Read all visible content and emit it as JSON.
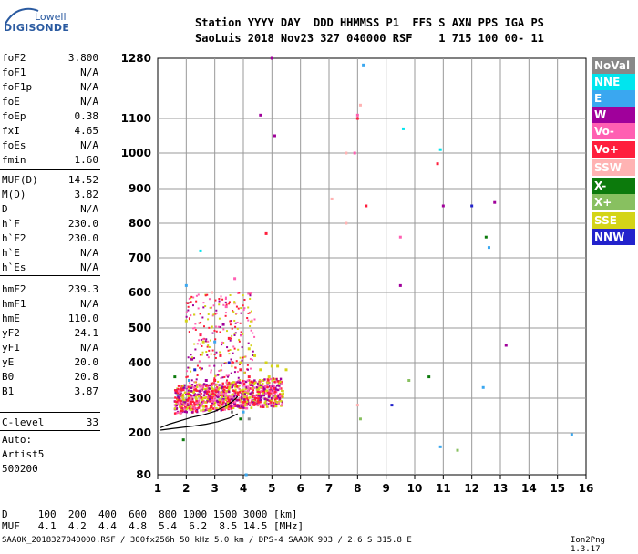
{
  "logo": {
    "line1": "Lowell",
    "line2": "DIGISONDE"
  },
  "header": {
    "line1": "Station YYYY DAY  DDD HHMMSS P1  FFS S AXN PPS IGA PS",
    "line2": "SaoLuis 2018 Nov23 327 040000 RSF    1 715 100 00- 11"
  },
  "params": [
    {
      "k": "foF2",
      "v": "3.800"
    },
    {
      "k": "foF1",
      "v": "N/A"
    },
    {
      "k": "foF1p",
      "v": "N/A"
    },
    {
      "k": "foE",
      "v": "N/A"
    },
    {
      "k": "foEp",
      "v": "0.38"
    },
    {
      "k": "fxI",
      "v": "4.65"
    },
    {
      "k": "foEs",
      "v": "N/A"
    },
    {
      "k": "fmin",
      "v": "1.60"
    },
    {
      "k": "MUF(D)",
      "v": "14.52"
    },
    {
      "k": "M(D)",
      "v": "3.82"
    },
    {
      "k": "D",
      "v": "N/A"
    },
    {
      "k": "h`F",
      "v": "230.0"
    },
    {
      "k": "h`F2",
      "v": "230.0"
    },
    {
      "k": "h`E",
      "v": "N/A"
    },
    {
      "k": "h`Es",
      "v": "N/A"
    },
    {
      "k": "hmF2",
      "v": "239.3"
    },
    {
      "k": "hmF1",
      "v": "N/A"
    },
    {
      "k": "hmE",
      "v": "110.0"
    },
    {
      "k": "yF2",
      "v": "24.1"
    },
    {
      "k": "yF1",
      "v": "N/A"
    },
    {
      "k": "yE",
      "v": "20.0"
    },
    {
      "k": "B0",
      "v": "20.8"
    },
    {
      "k": "B1",
      "v": "3.87"
    },
    {
      "k": "C-level",
      "v": "33"
    }
  ],
  "auto": {
    "l1": "Auto:",
    "l2": "Artist5",
    "l3": "500200"
  },
  "legend": [
    {
      "label": "NoVal",
      "bg": "#888888",
      "fg": "#ffffff"
    },
    {
      "label": "NNE",
      "bg": "#00e5ee",
      "fg": "#ffffff"
    },
    {
      "label": "E",
      "bg": "#3aa7f0",
      "fg": "#ffffff"
    },
    {
      "label": "W",
      "bg": "#a0009b",
      "fg": "#ffffff"
    },
    {
      "label": "Vo-",
      "bg": "#ff5fb2",
      "fg": "#ffffff"
    },
    {
      "label": "Vo+",
      "bg": "#ff1e3c",
      "fg": "#ffffff"
    },
    {
      "label": "SSW",
      "bg": "#ffb3b3",
      "fg": "#ffffff"
    },
    {
      "label": "X-",
      "bg": "#0c7a0c",
      "fg": "#ffffff"
    },
    {
      "label": "X+",
      "bg": "#88c060",
      "fg": "#ffffff"
    },
    {
      "label": "SSE",
      "bg": "#d4d418",
      "fg": "#ffffff"
    },
    {
      "label": "NNW",
      "bg": "#2222cc",
      "fg": "#ffffff"
    }
  ],
  "footer": {
    "d_line": "D     100  200  400  600  800 1000 1500 3000 [km]",
    "muf_line": "MUF   4.1  4.2  4.4  4.8  5.4  6.2  8.5 14.5 [MHz]",
    "file_line": "SAA0K_2018327040000.RSF / 300fx256h 50 kHz 5.0 km / DPS-4 SAA0K 903 / 2.6 S 315.8 E",
    "version": "Ion2Png 1.3.17"
  },
  "chart_data": {
    "type": "scatter",
    "title": "",
    "xlabel": "",
    "ylabel": "",
    "x_ticks": [
      1,
      2,
      3,
      4,
      5,
      6,
      7,
      8,
      9,
      10,
      11,
      12,
      13,
      14,
      15,
      16
    ],
    "y_ticks": [
      80,
      200,
      300,
      400,
      500,
      600,
      700,
      800,
      900,
      1000,
      1100,
      1280
    ],
    "xlim": [
      1,
      16
    ],
    "ylim": [
      80,
      1280
    ],
    "grid": true,
    "legend_position": "right",
    "series": [
      {
        "name": "Vo+",
        "color": "#ff1e3c",
        "points": [
          [
            2.3,
            270
          ],
          [
            2.6,
            290
          ],
          [
            2.9,
            300
          ],
          [
            3.2,
            285
          ],
          [
            3.5,
            295
          ],
          [
            3.8,
            280
          ],
          [
            4.1,
            300
          ],
          [
            4.4,
            290
          ],
          [
            4.7,
            275
          ],
          [
            3.0,
            350
          ],
          [
            3.3,
            330
          ],
          [
            3.6,
            340
          ],
          [
            2.5,
            480
          ],
          [
            3.2,
            420
          ],
          [
            3.5,
            470
          ],
          [
            3.9,
            380
          ],
          [
            4.2,
            360
          ],
          [
            2.1,
            300
          ],
          [
            1.8,
            290
          ],
          [
            8.0,
            1100
          ],
          [
            10.8,
            970
          ],
          [
            8.3,
            850
          ],
          [
            4.8,
            770
          ]
        ]
      },
      {
        "name": "W",
        "color": "#a0009b",
        "points": [
          [
            2.4,
            290
          ],
          [
            2.8,
            310
          ],
          [
            3.1,
            290
          ],
          [
            3.4,
            300
          ],
          [
            3.7,
            285
          ],
          [
            4.0,
            275
          ],
          [
            4.5,
            285
          ],
          [
            5.0,
            1280
          ],
          [
            5.1,
            1050
          ],
          [
            2.7,
            350
          ],
          [
            2.2,
            410
          ],
          [
            3.3,
            510
          ],
          [
            4.6,
            1110
          ],
          [
            9.5,
            620
          ],
          [
            11.0,
            850
          ],
          [
            13.2,
            450
          ],
          [
            12.8,
            860
          ]
        ]
      },
      {
        "name": "SSE",
        "color": "#d4d418",
        "points": [
          [
            4.6,
            380
          ],
          [
            4.8,
            400
          ],
          [
            5.0,
            390
          ],
          [
            4.4,
            420
          ],
          [
            4.9,
            360
          ],
          [
            4.2,
            440
          ],
          [
            4.7,
            350
          ],
          [
            3.9,
            400
          ],
          [
            5.2,
            390
          ],
          [
            5.5,
            380
          ],
          [
            3.5,
            330
          ],
          [
            4.0,
            320
          ],
          [
            2.0,
            520
          ],
          [
            2.6,
            460
          ]
        ]
      },
      {
        "name": "Vo-",
        "color": "#ff5fb2",
        "points": [
          [
            2.2,
            280
          ],
          [
            2.5,
            300
          ],
          [
            3.0,
            270
          ],
          [
            3.9,
            290
          ],
          [
            4.3,
            310
          ],
          [
            8.0,
            1110
          ],
          [
            7.9,
            1000
          ],
          [
            9.5,
            760
          ],
          [
            3.4,
            560
          ],
          [
            3.7,
            640
          ]
        ]
      },
      {
        "name": "NNE",
        "color": "#00e5ee",
        "points": [
          [
            1.7,
            310
          ],
          [
            1.9,
            290
          ],
          [
            2.0,
            330
          ],
          [
            9.6,
            1070
          ],
          [
            10.9,
            1010
          ],
          [
            2.5,
            720
          ]
        ]
      },
      {
        "name": "E",
        "color": "#3aa7f0",
        "points": [
          [
            1.8,
            320
          ],
          [
            2.1,
            350
          ],
          [
            3.0,
            460
          ],
          [
            4.0,
            260
          ],
          [
            4.1,
            80
          ],
          [
            10.9,
            160
          ],
          [
            12.4,
            330
          ],
          [
            12.6,
            730
          ],
          [
            15.5,
            195
          ],
          [
            8.2,
            1260
          ],
          [
            2.0,
            620
          ]
        ]
      },
      {
        "name": "X-",
        "color": "#0c7a0c",
        "points": [
          [
            1.9,
            180
          ],
          [
            1.6,
            360
          ],
          [
            3.9,
            240
          ],
          [
            12.5,
            760
          ],
          [
            10.5,
            360
          ]
        ]
      },
      {
        "name": "X+",
        "color": "#88c060",
        "points": [
          [
            11.5,
            150
          ],
          [
            9.8,
            350
          ],
          [
            8.1,
            240
          ]
        ]
      },
      {
        "name": "NNW",
        "color": "#2222cc",
        "points": [
          [
            2.3,
            380
          ],
          [
            3.5,
            400
          ],
          [
            4.1,
            330
          ],
          [
            12.0,
            850
          ],
          [
            9.2,
            280
          ]
        ]
      },
      {
        "name": "SSW",
        "color": "#ffb3b3",
        "points": [
          [
            2.9,
            600
          ],
          [
            3.7,
            570
          ],
          [
            4.3,
            520
          ],
          [
            7.6,
            800
          ],
          [
            8.1,
            1140
          ],
          [
            7.6,
            1000
          ],
          [
            7.1,
            870
          ],
          [
            8.0,
            280
          ]
        ]
      },
      {
        "name": "NoVal",
        "color": "#888888",
        "points": [
          [
            2.8,
            300
          ],
          [
            3.1,
            320
          ],
          [
            3.6,
            260
          ],
          [
            4.2,
            240
          ]
        ]
      }
    ],
    "curves": [
      {
        "name": "trace-upper",
        "color": "#000000",
        "points": [
          [
            1.1,
            215
          ],
          [
            1.4,
            225
          ],
          [
            1.8,
            235
          ],
          [
            2.2,
            245
          ],
          [
            2.6,
            252
          ],
          [
            3.0,
            262
          ],
          [
            3.4,
            278
          ],
          [
            3.7,
            296
          ],
          [
            3.8,
            305
          ]
        ]
      },
      {
        "name": "trace-lower",
        "color": "#000000",
        "points": [
          [
            1.1,
            208
          ],
          [
            1.5,
            212
          ],
          [
            1.9,
            216
          ],
          [
            2.3,
            220
          ],
          [
            2.7,
            225
          ],
          [
            3.1,
            232
          ],
          [
            3.5,
            242
          ],
          [
            3.8,
            255
          ]
        ]
      }
    ]
  }
}
